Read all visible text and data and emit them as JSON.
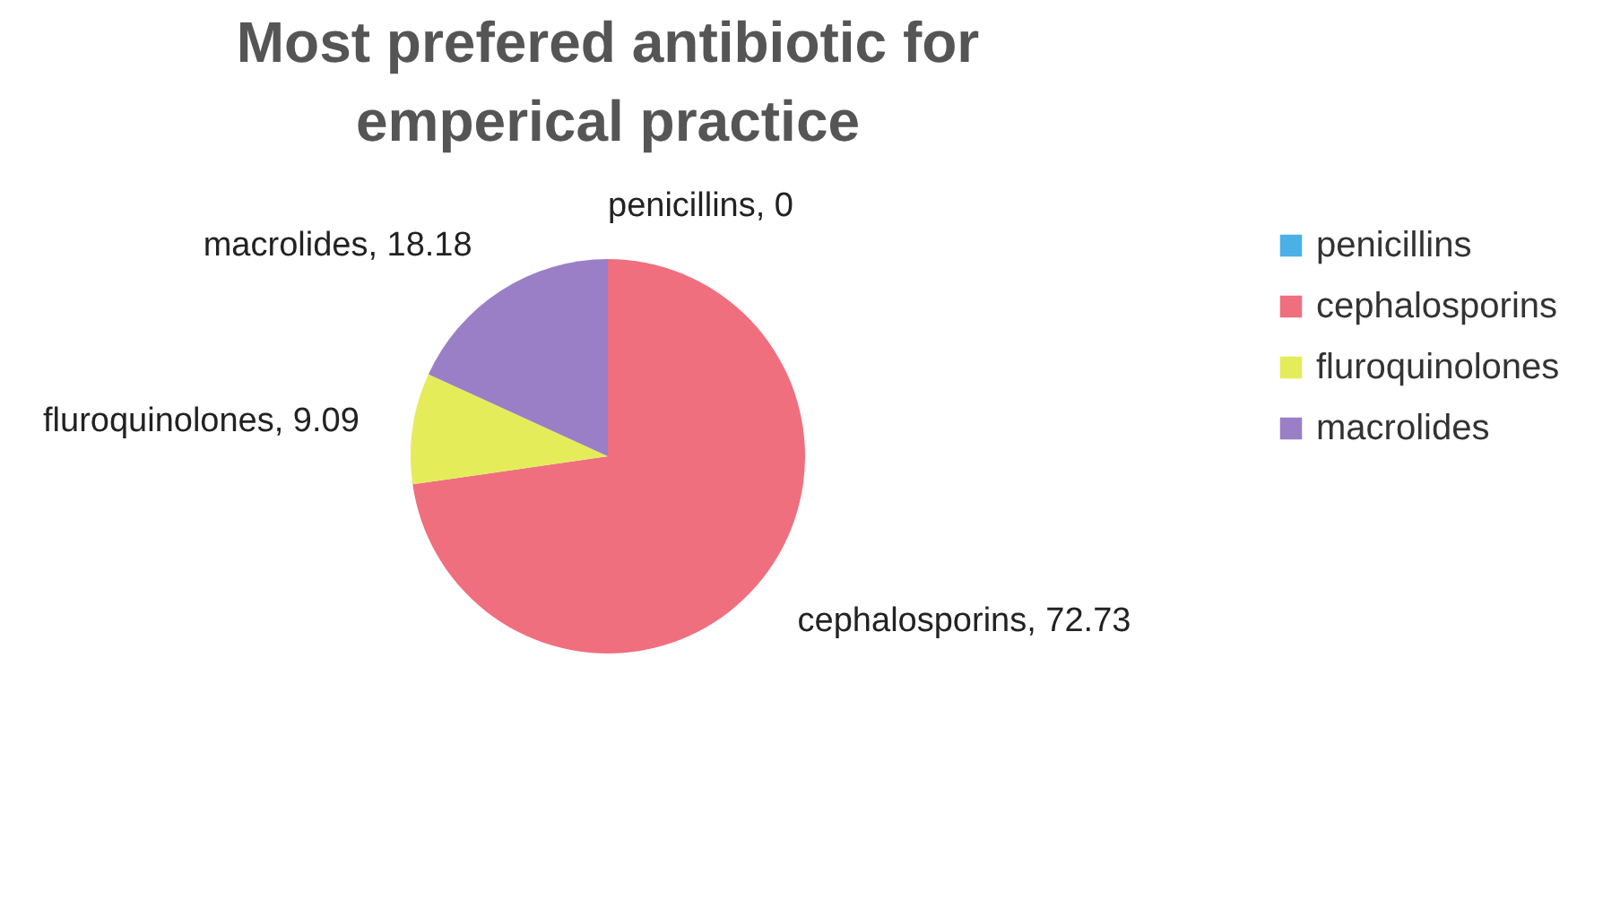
{
  "chart_data": {
    "type": "pie",
    "title": "Most prefered antibiotic for emperical practice",
    "categories": [
      "penicillins",
      "cephalosporins",
      "fluroquinolones",
      "macrolides"
    ],
    "values": [
      0,
      72.73,
      9.09,
      18.18
    ],
    "colors": [
      "#4bb0e6",
      "#ef6f7e",
      "#e4ec5a",
      "#9a7fc6"
    ],
    "value_labels": [
      "penicillins, 0",
      "cephalosporins, 72.73",
      "fluroquinolones, 9.09",
      "macrolides, 18.18"
    ],
    "legend": "right"
  }
}
